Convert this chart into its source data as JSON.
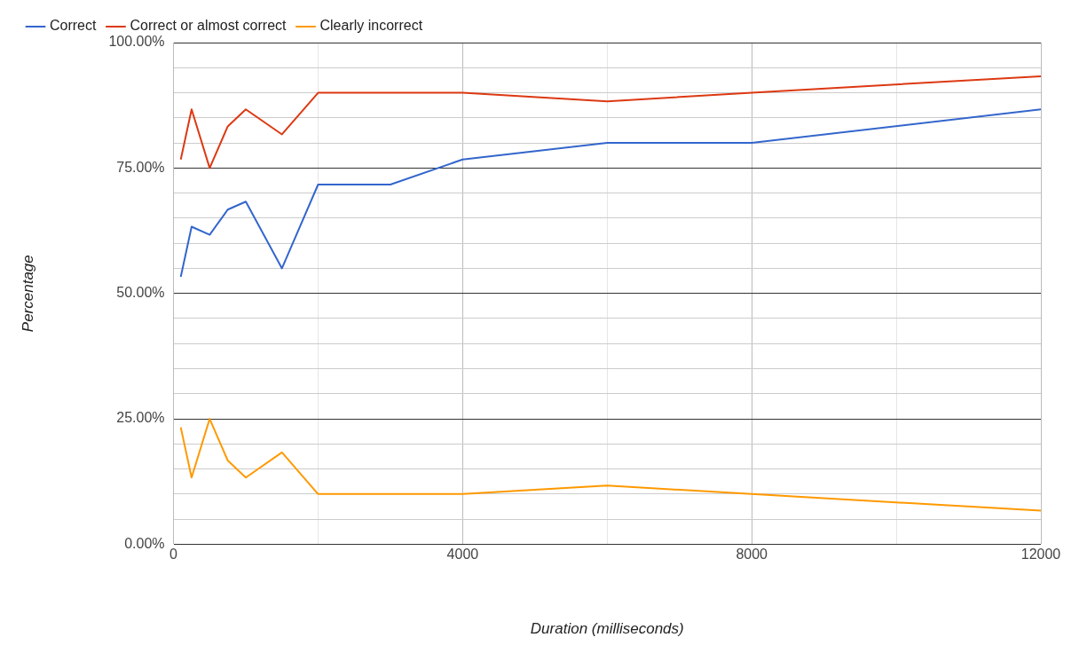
{
  "chart_data": {
    "type": "line",
    "xlabel": "Duration (milliseconds)",
    "ylabel": "Percentage",
    "x": [
      100,
      250,
      500,
      750,
      1000,
      1500,
      2000,
      3000,
      4000,
      6000,
      8000,
      12000
    ],
    "series": [
      {
        "name": "Correct",
        "color": "#3366cc",
        "values": [
          53.3,
          63.3,
          61.7,
          66.7,
          68.3,
          55,
          71.7,
          71.7,
          76.7,
          80,
          80,
          86.7
        ]
      },
      {
        "name": "Correct or almost correct",
        "color": "#dc3912",
        "values": [
          76.7,
          86.7,
          75,
          83.3,
          86.7,
          81.7,
          90,
          90,
          90,
          88.3,
          90,
          93.3
        ]
      },
      {
        "name": "Clearly incorrect",
        "color": "#ff9900",
        "values": [
          23.3,
          13.3,
          25,
          16.7,
          13.3,
          18.3,
          10,
          10,
          10,
          11.7,
          10,
          6.7
        ]
      }
    ],
    "xlim": [
      0,
      12000
    ],
    "xticks": [
      0,
      {
        "value": 2000,
        "label": null
      },
      4000,
      {
        "value": 6000,
        "label": null
      },
      8000,
      {
        "value": 10000,
        "label": null
      },
      12000
    ],
    "ylim": [
      0,
      100
    ],
    "yticks": [
      {
        "value": 0,
        "label": "0.00%"
      },
      {
        "value": 5,
        "label": null
      },
      {
        "value": 10,
        "label": null
      },
      {
        "value": 15,
        "label": null
      },
      {
        "value": 20,
        "label": null
      },
      {
        "value": 25,
        "label": "25.00%"
      },
      {
        "value": 30,
        "label": null
      },
      {
        "value": 35,
        "label": null
      },
      {
        "value": 40,
        "label": null
      },
      {
        "value": 45,
        "label": null
      },
      {
        "value": 50,
        "label": "50.00%"
      },
      {
        "value": 55,
        "label": null
      },
      {
        "value": 60,
        "label": null
      },
      {
        "value": 65,
        "label": null
      },
      {
        "value": 70,
        "label": null
      },
      {
        "value": 75,
        "label": "75.00%"
      },
      {
        "value": 80,
        "label": null
      },
      {
        "value": 85,
        "label": null
      },
      {
        "value": 90,
        "label": null
      },
      {
        "value": 95,
        "label": null
      },
      {
        "value": 100,
        "label": "100.00%"
      }
    ],
    "grid": true,
    "legend": "top left",
    "marker": "none",
    "line_style": "solid"
  }
}
